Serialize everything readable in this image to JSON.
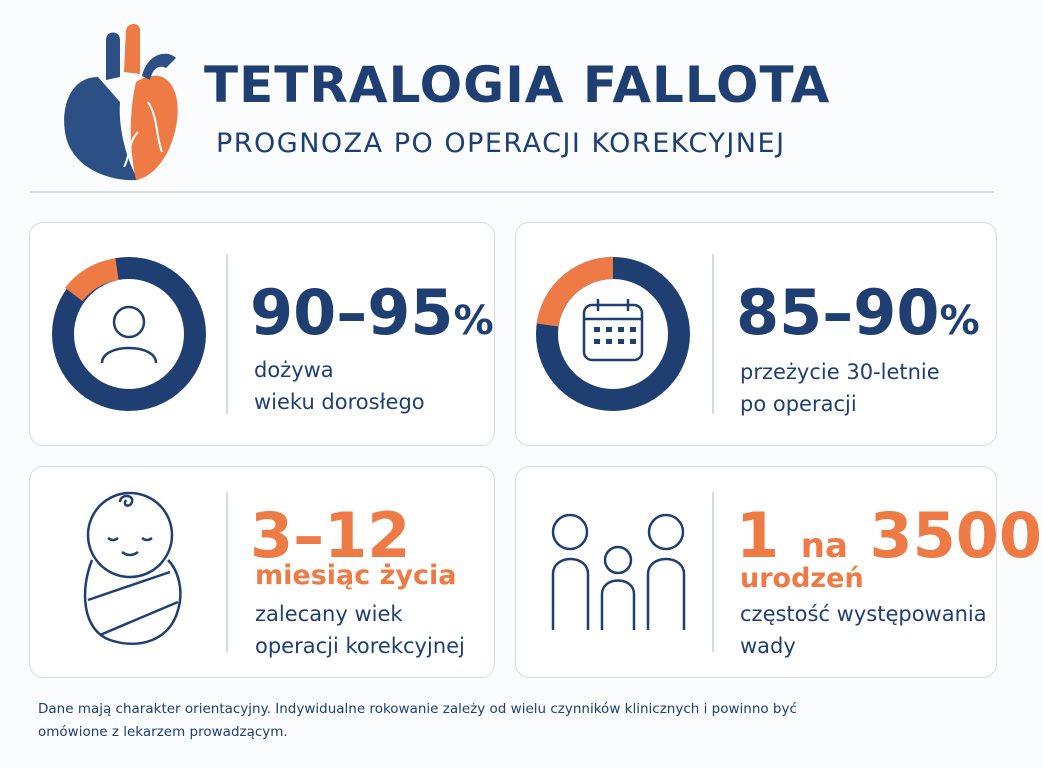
{
  "header": {
    "title": "TETRALOGIA FALLOTA",
    "subtitle": "PROGNOZA PO OPERACJI KOREKCYJNEJ"
  },
  "cards": [
    {
      "value": "90–95",
      "unit": "%",
      "description": [
        "dożywa",
        "wieku dorosłego"
      ]
    },
    {
      "value": "85–90",
      "unit": "%",
      "description": [
        "przeżycie 30-letnie",
        "po operacji"
      ]
    },
    {
      "value": "3–12",
      "subvalue": "miesiąc życia",
      "description": [
        "zalecany wiek",
        "operacji korekcyjnej"
      ]
    },
    {
      "value": "1",
      "unit": "na",
      "value2": "3500",
      "subvalue": "urodzeń",
      "description": [
        "częstość występowania",
        "wady"
      ]
    }
  ],
  "footnote": [
    "Dane mają charakter orientacyjny. Indywidualne rokowanie zależy od wielu czynników klinicznych i powinno być",
    "omówione z lekarzem prowadzącym."
  ]
}
